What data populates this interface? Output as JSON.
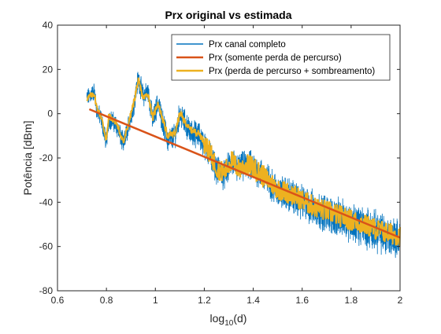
{
  "chart_data": {
    "type": "line",
    "title": "Prx original vs estimada",
    "xlabel": {
      "base": "log",
      "sub": "10",
      "rest": "(d)"
    },
    "ylabel": "Potência [dBm]",
    "xlim": [
      0.6,
      2.0
    ],
    "ylim": [
      -80,
      40
    ],
    "xticks": [
      0.6,
      0.8,
      1.0,
      1.2,
      1.4,
      1.6,
      1.8,
      2.0
    ],
    "xtick_labels": [
      "0.6",
      "0.8",
      "1",
      "1.2",
      "1.4",
      "1.6",
      "1.8",
      "2"
    ],
    "yticks": [
      -80,
      -60,
      -40,
      -20,
      0,
      20,
      40
    ],
    "ytick_labels": [
      "-80",
      "-60",
      "-40",
      "-20",
      "0",
      "20",
      "40"
    ],
    "grid": false,
    "legend_position": "top-right",
    "series": [
      {
        "name": "Prx canal completo",
        "color": "#0072BD",
        "noise_amplitude": 5,
        "x": [
          0.72,
          0.75,
          0.76,
          0.78,
          0.8,
          0.81,
          0.84,
          0.87,
          0.91,
          0.93,
          0.95,
          0.97,
          0.99,
          1.01,
          1.05,
          1.08,
          1.1,
          1.14,
          1.18,
          1.22,
          1.25,
          1.28,
          1.31,
          1.34,
          1.38,
          1.42,
          1.46,
          1.5,
          1.55,
          1.6,
          1.65,
          1.7,
          1.75,
          1.8,
          1.85,
          1.9,
          1.95,
          2.0
        ],
        "y": [
          7,
          10,
          2,
          -3,
          -13,
          -2,
          -5,
          -14,
          3,
          16,
          8,
          10,
          -3,
          5,
          -12,
          -10,
          0,
          -8,
          -10,
          -18,
          -25,
          -28,
          -22,
          -25,
          -23,
          -26,
          -30,
          -35,
          -37,
          -40,
          -43,
          -45,
          -47,
          -49,
          -51,
          -53,
          -55,
          -56
        ]
      },
      {
        "name": "Prx (somente perda de percurso)",
        "color": "#D95319",
        "x": [
          0.73,
          2.0
        ],
        "y": [
          2,
          -56
        ]
      },
      {
        "name": "Prx (perda de percurso + sombreamento)",
        "color": "#EDB120",
        "x": [
          0.72,
          0.75,
          0.76,
          0.78,
          0.8,
          0.81,
          0.84,
          0.87,
          0.91,
          0.93,
          0.95,
          0.97,
          0.99,
          1.01,
          1.05,
          1.08,
          1.1,
          1.14,
          1.18,
          1.22,
          1.25,
          1.28,
          1.31,
          1.34,
          1.38,
          1.42,
          1.46,
          1.5,
          1.55,
          1.6,
          1.65,
          1.7,
          1.75,
          1.8,
          1.85,
          1.9,
          1.95,
          2.0
        ],
        "y": [
          7,
          9,
          3,
          -2,
          -12,
          -1,
          -4,
          -13,
          4,
          15,
          7,
          9,
          -2,
          5,
          -10,
          -9,
          0,
          -7,
          -9,
          -17,
          -24,
          -27,
          -21,
          -25,
          -23,
          -26,
          -30,
          -34,
          -36,
          -39,
          -42,
          -44,
          -46,
          -48,
          -50,
          -52,
          -54,
          -55
        ]
      }
    ]
  }
}
